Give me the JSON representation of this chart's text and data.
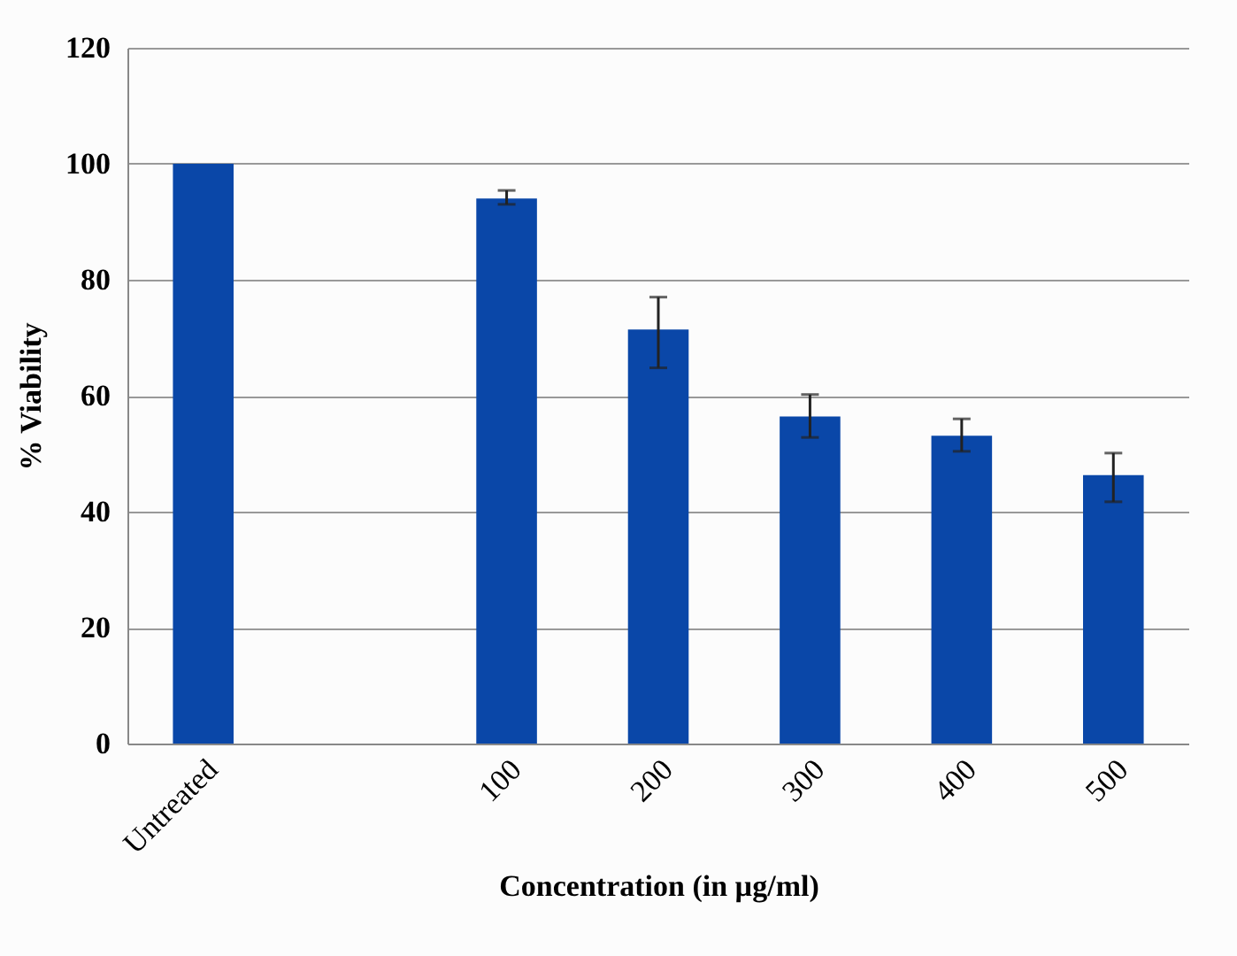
{
  "chart_data": {
    "type": "bar",
    "xlabel": "Concentration (in µg/ml)",
    "ylabel": "% Viability",
    "categories": [
      "Untreated",
      null,
      "100",
      "200",
      "300",
      "400",
      "500"
    ],
    "values": [
      100,
      null,
      94,
      71.4,
      56.4,
      53.1,
      46.3
    ],
    "errors": [
      null,
      null,
      [
        93,
        95.4
      ],
      [
        64.8,
        77
      ],
      [
        52.8,
        60.2
      ],
      [
        50.4,
        56
      ],
      [
        41.7,
        50.1
      ]
    ],
    "color": "#0a47a8",
    "ylim": [
      0,
      120
    ],
    "yticks": [
      0,
      20,
      40,
      60,
      80,
      100,
      120
    ],
    "grid": "y"
  }
}
